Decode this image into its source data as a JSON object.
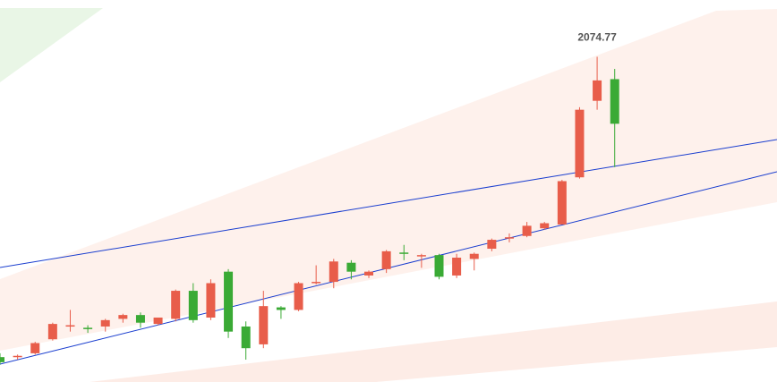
{
  "chart_data": {
    "type": "candlestick",
    "title": "",
    "xlabel": "",
    "ylabel": "",
    "ylim": [
      1952.5,
      2083.0
    ],
    "grid": false,
    "legend": "none",
    "annotations": [
      {
        "text": "2074.77",
        "target": "high-max"
      }
    ],
    "colors": {
      "up": "#e85d4a",
      "down": "#3aaa35",
      "trendline": "#1a3ecf",
      "zone_red": "#fdece6",
      "zone_green": "#e9f6e6"
    },
    "candles": [
      {
        "o": 1957.0,
        "h": 1958.5,
        "l": 1954.0,
        "c": 1955.0
      },
      {
        "o": 1957.0,
        "h": 1958.0,
        "l": 1956.0,
        "c": 1957.5
      },
      {
        "o": 1958.5,
        "h": 1963.0,
        "l": 1958.0,
        "c": 1962.5
      },
      {
        "o": 1964.0,
        "h": 1970.5,
        "l": 1963.5,
        "c": 1970.0
      },
      {
        "o": 1969.0,
        "h": 1975.5,
        "l": 1967.0,
        "c": 1969.5
      },
      {
        "o": 1968.5,
        "h": 1969.5,
        "l": 1966.5,
        "c": 1968.0
      },
      {
        "o": 1969.0,
        "h": 1972.0,
        "l": 1967.0,
        "c": 1971.5
      },
      {
        "o": 1972.0,
        "h": 1974.0,
        "l": 1970.5,
        "c": 1973.5
      },
      {
        "o": 1973.5,
        "h": 1974.5,
        "l": 1968.5,
        "c": 1970.5
      },
      {
        "o": 1970.0,
        "h": 1972.5,
        "l": 1969.5,
        "c": 1972.5
      },
      {
        "o": 1972.0,
        "h": 1983.5,
        "l": 1971.0,
        "c": 1983.0
      },
      {
        "o": 1983.0,
        "h": 1986.0,
        "l": 1970.5,
        "c": 1971.5
      },
      {
        "o": 1972.5,
        "h": 1987.5,
        "l": 1971.5,
        "c": 1986.0
      },
      {
        "o": 1990.5,
        "h": 1991.5,
        "l": 1964.5,
        "c": 1967.0
      },
      {
        "o": 1969.0,
        "h": 1971.0,
        "l": 1956.0,
        "c": 1960.5
      },
      {
        "o": 1962.0,
        "h": 1983.0,
        "l": 1960.5,
        "c": 1977.0
      },
      {
        "o": 1976.5,
        "h": 1977.0,
        "l": 1972.0,
        "c": 1975.5
      },
      {
        "o": 1975.5,
        "h": 1986.5,
        "l": 1975.0,
        "c": 1986.0
      },
      {
        "o": 1986.0,
        "h": 1993.0,
        "l": 1985.5,
        "c": 1986.5
      },
      {
        "o": 1986.5,
        "h": 1995.5,
        "l": 1984.0,
        "c": 1994.5
      },
      {
        "o": 1994.0,
        "h": 1995.0,
        "l": 1987.5,
        "c": 1990.5
      },
      {
        "o": 1989.0,
        "h": 1991.0,
        "l": 1988.0,
        "c": 1990.5
      },
      {
        "o": 1991.5,
        "h": 1999.0,
        "l": 1990.0,
        "c": 1998.5
      },
      {
        "o": 1998.0,
        "h": 2001.0,
        "l": 1995.0,
        "c": 1997.5
      },
      {
        "o": 1997.0,
        "h": 1997.5,
        "l": 1992.0,
        "c": 1997.0
      },
      {
        "o": 1997.0,
        "h": 1997.5,
        "l": 1987.5,
        "c": 1988.5
      },
      {
        "o": 1989.0,
        "h": 1997.5,
        "l": 1988.0,
        "c": 1996.0
      },
      {
        "o": 1995.5,
        "h": 1998.0,
        "l": 1991.0,
        "c": 1997.5
      },
      {
        "o": 1999.5,
        "h": 2003.5,
        "l": 1998.5,
        "c": 2003.0
      },
      {
        "o": 2004.0,
        "h": 2005.5,
        "l": 2002.0,
        "c": 2004.0
      },
      {
        "o": 2004.5,
        "h": 2010.0,
        "l": 2004.0,
        "c": 2008.5
      },
      {
        "o": 2007.5,
        "h": 2010.0,
        "l": 2007.0,
        "c": 2009.5
      },
      {
        "o": 2009.0,
        "h": 2026.5,
        "l": 2009.0,
        "c": 2026.0
      },
      {
        "o": 2027.5,
        "h": 2055.0,
        "l": 2027.0,
        "c": 2054.0
      },
      {
        "o": 2057.5,
        "h": 2074.77,
        "l": 2054.0,
        "c": 2065.5
      },
      {
        "o": 2066.0,
        "h": 2070.0,
        "l": 2031.5,
        "c": 2048.5
      }
    ]
  }
}
